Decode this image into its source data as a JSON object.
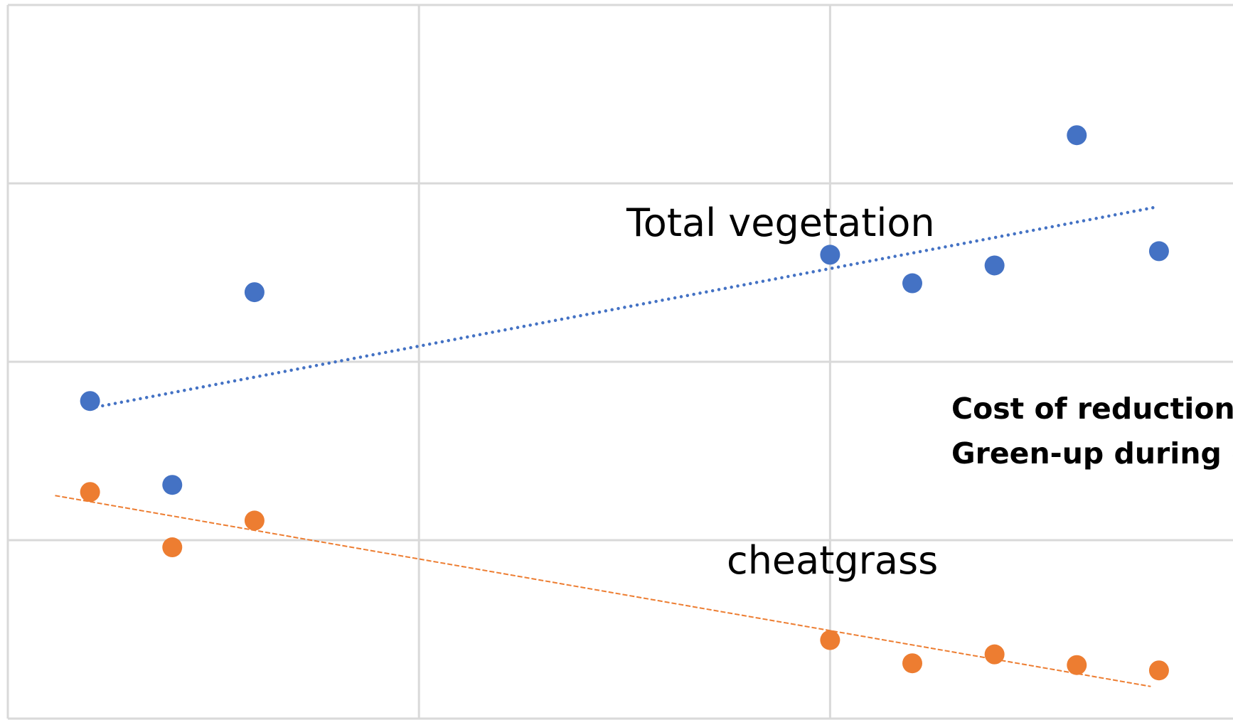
{
  "chart_data": {
    "type": "scatter",
    "xlim": [
      0,
      2.98
    ],
    "xticks": [
      0,
      1,
      2
    ],
    "ylim": [
      0,
      4
    ],
    "yticks": [
      0,
      1,
      2,
      3,
      4
    ],
    "grid": true,
    "series": [
      {
        "color": "#4472c4",
        "x": [
          0.2,
          0.4,
          0.6,
          2.0,
          2.2,
          2.4,
          2.6,
          2.8
        ],
        "values": [
          1.78,
          1.31,
          2.39,
          2.6,
          2.44,
          2.54,
          3.27,
          2.62
        ]
      },
      {
        "color": "#ed7d31",
        "x": [
          0.2,
          0.4,
          0.6,
          2.0,
          2.2,
          2.4,
          2.6,
          2.8
        ],
        "values": [
          1.27,
          0.96,
          1.11,
          0.44,
          0.31,
          0.36,
          0.3,
          0.27
        ]
      }
    ],
    "trendlines": [
      {
        "color": "#4472c4",
        "style": "dotted",
        "x": [
          0.2,
          2.8
        ],
        "values": [
          1.74,
          2.87
        ]
      },
      {
        "color": "#ed7d31",
        "style": "dashed",
        "x": [
          0.115,
          2.78
        ],
        "values": [
          1.25,
          0.18
        ]
      }
    ],
    "annotations": [
      "Total vegetation",
      "cheatgrass",
      "Cost of reduction =",
      "Green-up during d"
    ]
  }
}
